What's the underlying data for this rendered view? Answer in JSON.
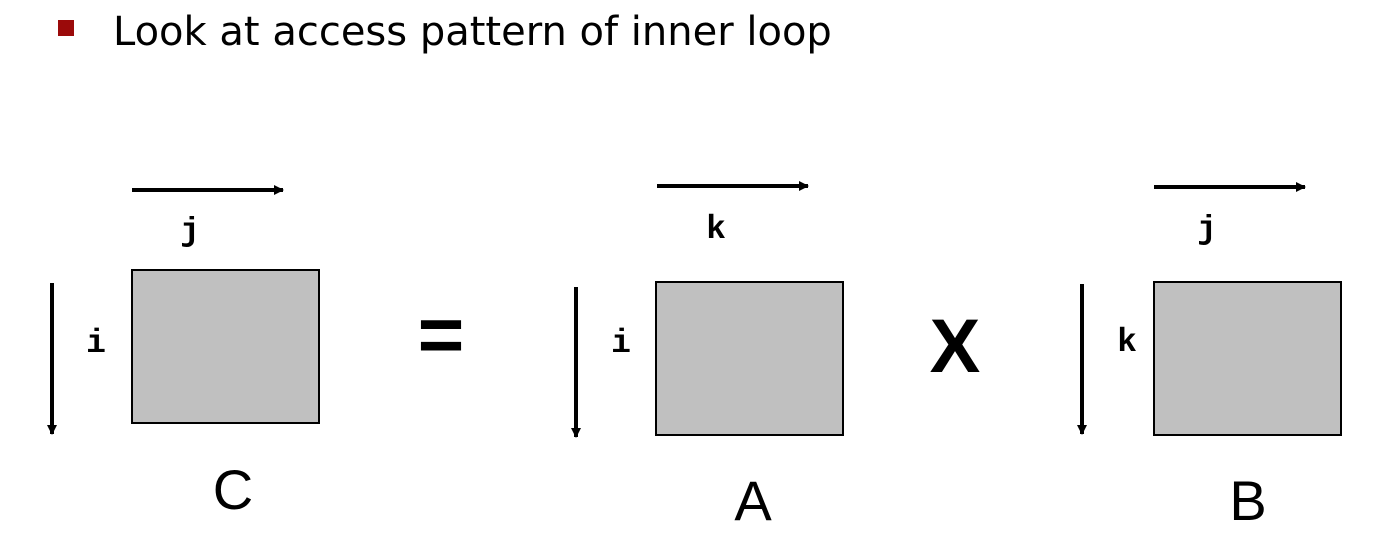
{
  "bullet": {
    "text": "Look at access pattern of inner loop",
    "marker_color": "#9b0a0a"
  },
  "matrix_fill": "#c0c0c0",
  "equation": {
    "equals_sign": "=",
    "times_sign": "X"
  },
  "matrices": {
    "C": {
      "label": "C",
      "row_index": "i",
      "col_index": "j"
    },
    "A": {
      "label": "A",
      "row_index": "i",
      "col_index": "k"
    },
    "B": {
      "label": "B",
      "row_index": "k",
      "col_index": "j"
    }
  }
}
